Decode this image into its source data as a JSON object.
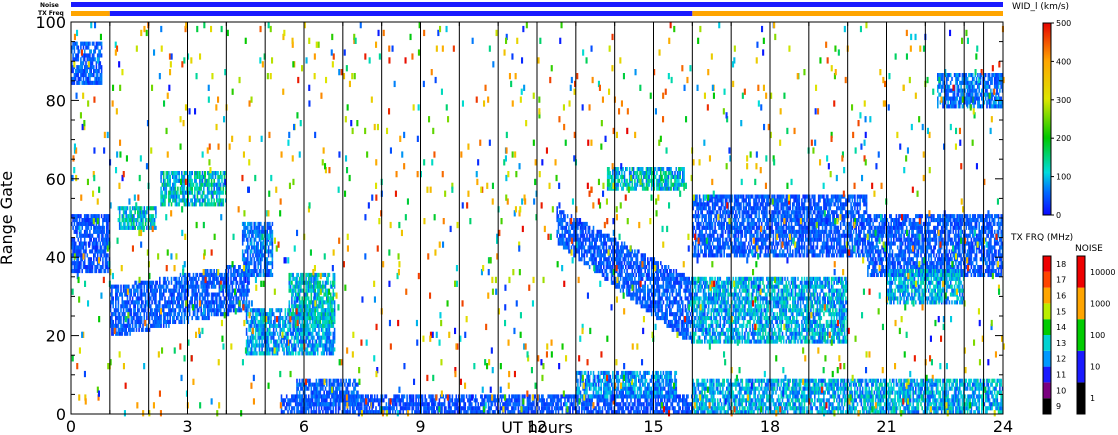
{
  "chart_data": {
    "type": "heatmap",
    "title": "",
    "xlabel": "UT hours",
    "ylabel": "Range Gate",
    "xlim": [
      0,
      24
    ],
    "ylim": [
      0,
      100
    ],
    "x_ticks": [
      0,
      3,
      6,
      9,
      12,
      15,
      18,
      21,
      24
    ],
    "y_ticks": [
      0,
      20,
      40,
      60,
      80,
      100
    ],
    "scan_boundaries_hours": [
      1,
      2,
      3,
      4,
      5,
      6,
      7,
      8,
      9,
      10,
      11,
      12,
      13,
      14,
      15,
      16,
      17,
      18,
      19,
      20,
      21,
      22,
      22.5,
      23,
      23.5
    ],
    "top_strips": {
      "noise_label": "Noise",
      "txfreq_label": "TX Freq",
      "noise_color": "#1a1aff",
      "txfreq_segments": [
        {
          "start": 0,
          "end": 1,
          "color": "#ffa500"
        },
        {
          "start": 1,
          "end": 16,
          "color": "#1a1aff"
        },
        {
          "start": 16,
          "end": 24,
          "color": "#ffa500"
        }
      ]
    },
    "colorbar_width": {
      "title": "WID_l (km/s)",
      "range": [
        0,
        500
      ],
      "ticks": [
        0,
        100,
        200,
        300,
        400,
        500
      ]
    },
    "colorbar_txfreq": {
      "title": "TX FRQ (MHz)",
      "levels": [
        9,
        10,
        11,
        12,
        13,
        14,
        15,
        16,
        17,
        18
      ],
      "colors": [
        "#000000",
        "#7a0080",
        "#1a1aff",
        "#0099ff",
        "#00d2d2",
        "#00cc00",
        "#bbee00",
        "#ffa500",
        "#ff4400",
        "#ee0000"
      ]
    },
    "colorbar_noise": {
      "title": "NOISE",
      "ticks": [
        "1",
        "10",
        "100",
        "1000",
        "10000"
      ],
      "colors": [
        "#000000",
        "#1a1aff",
        "#00cc00",
        "#ffa500",
        "#ee0000"
      ]
    },
    "scatter_regions": [
      {
        "t0": 0,
        "t1": 1,
        "g0": 36,
        "g1": 50,
        "wid": 40
      },
      {
        "t0": 0,
        "t1": 0.8,
        "g0": 84,
        "g1": 94,
        "wid": 50
      },
      {
        "t0": 1,
        "t1": 4.6,
        "g0": 20,
        "g1": 32,
        "g0_end": 27,
        "g1_end": 38,
        "wid": 45
      },
      {
        "t0": 4.4,
        "t1": 5.2,
        "g0": 35,
        "g1": 48,
        "wid": 60
      },
      {
        "t0": 2.3,
        "t1": 4.0,
        "g0": 53,
        "g1": 61,
        "wid": 110
      },
      {
        "t0": 1.2,
        "t1": 2.2,
        "g0": 47,
        "g1": 52,
        "wid": 110
      },
      {
        "t0": 4.5,
        "t1": 6.8,
        "g0": 15,
        "g1": 26,
        "wid": 80
      },
      {
        "t0": 5.6,
        "t1": 6.8,
        "g0": 22,
        "g1": 35,
        "wid": 110
      },
      {
        "t0": 5.4,
        "t1": 16,
        "g0": 0,
        "g1": 4,
        "wid": 40
      },
      {
        "t0": 5.8,
        "t1": 7.4,
        "g0": 2,
        "g1": 8,
        "wid": 50
      },
      {
        "t0": 12.5,
        "t1": 16,
        "g0": 44,
        "g1": 52,
        "g0_end": 18,
        "g1_end": 34,
        "wid": 45
      },
      {
        "t0": 13.8,
        "t1": 15.8,
        "g0": 57,
        "g1": 62,
        "wid": 110
      },
      {
        "t0": 13.0,
        "t1": 15.6,
        "g0": 4,
        "g1": 10,
        "wid": 70
      },
      {
        "t0": 16,
        "t1": 20.5,
        "g0": 40,
        "g1": 55,
        "wid": 45
      },
      {
        "t0": 20.5,
        "t1": 24,
        "g0": 35,
        "g1": 50,
        "wid": 45
      },
      {
        "t0": 16,
        "t1": 20,
        "g0": 18,
        "g1": 34,
        "wid": 90
      },
      {
        "t0": 16,
        "t1": 24,
        "g0": 0,
        "g1": 8,
        "wid": 90
      },
      {
        "t0": 22.3,
        "t1": 24,
        "g0": 78,
        "g1": 86,
        "wid": 60
      },
      {
        "t0": 21,
        "t1": 23,
        "g0": 28,
        "g1": 36,
        "wid": 90
      }
    ]
  }
}
